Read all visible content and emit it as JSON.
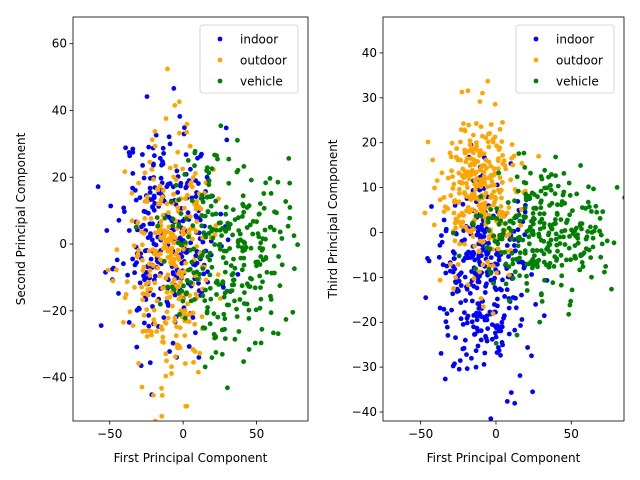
{
  "figure": {
    "background": "#ffffff"
  },
  "chart_data": [
    {
      "type": "scatter",
      "title": "",
      "xlabel": "First Principal Component",
      "ylabel": "Second Principal Component",
      "xlim": [
        -75,
        85
      ],
      "ylim": [
        -53,
        68
      ],
      "xticks": [
        -50,
        0,
        50
      ],
      "yticks": [
        -40,
        -20,
        0,
        20,
        40,
        60
      ],
      "legend": {
        "location": "top-right"
      },
      "series": [
        {
          "name": "indoor",
          "color": "#0000ff",
          "center": [
            -10,
            3
          ],
          "spread": [
            17,
            16
          ],
          "count": 320,
          "seed": 11
        },
        {
          "name": "outdoor",
          "color": "#ffa500",
          "center": [
            -10,
            -6
          ],
          "spread": [
            14,
            19
          ],
          "count": 300,
          "seed": 23
        },
        {
          "name": "vehicle",
          "color": "#008000",
          "center": [
            30,
            -1
          ],
          "spread": [
            20,
            15
          ],
          "count": 290,
          "seed": 37
        }
      ]
    },
    {
      "type": "scatter",
      "title": "",
      "xlabel": "First Principal Component",
      "ylabel": "Third Principal Component",
      "xlim": [
        -75,
        85
      ],
      "ylim": [
        -42,
        48
      ],
      "xticks": [
        -50,
        0,
        50
      ],
      "yticks": [
        -40,
        -30,
        -20,
        -10,
        0,
        10,
        20,
        30,
        40
      ],
      "legend": {
        "location": "top-right"
      },
      "series": [
        {
          "name": "indoor",
          "color": "#0000ff",
          "center": [
            -8,
            -10
          ],
          "spread": [
            16,
            11
          ],
          "count": 320,
          "seed": 41
        },
        {
          "name": "outdoor",
          "color": "#ffa500",
          "center": [
            -10,
            9
          ],
          "spread": [
            14,
            9
          ],
          "count": 300,
          "seed": 53
        },
        {
          "name": "vehicle",
          "color": "#008000",
          "center": [
            30,
            -1
          ],
          "spread": [
            20,
            7
          ],
          "count": 290,
          "seed": 67
        }
      ]
    }
  ]
}
